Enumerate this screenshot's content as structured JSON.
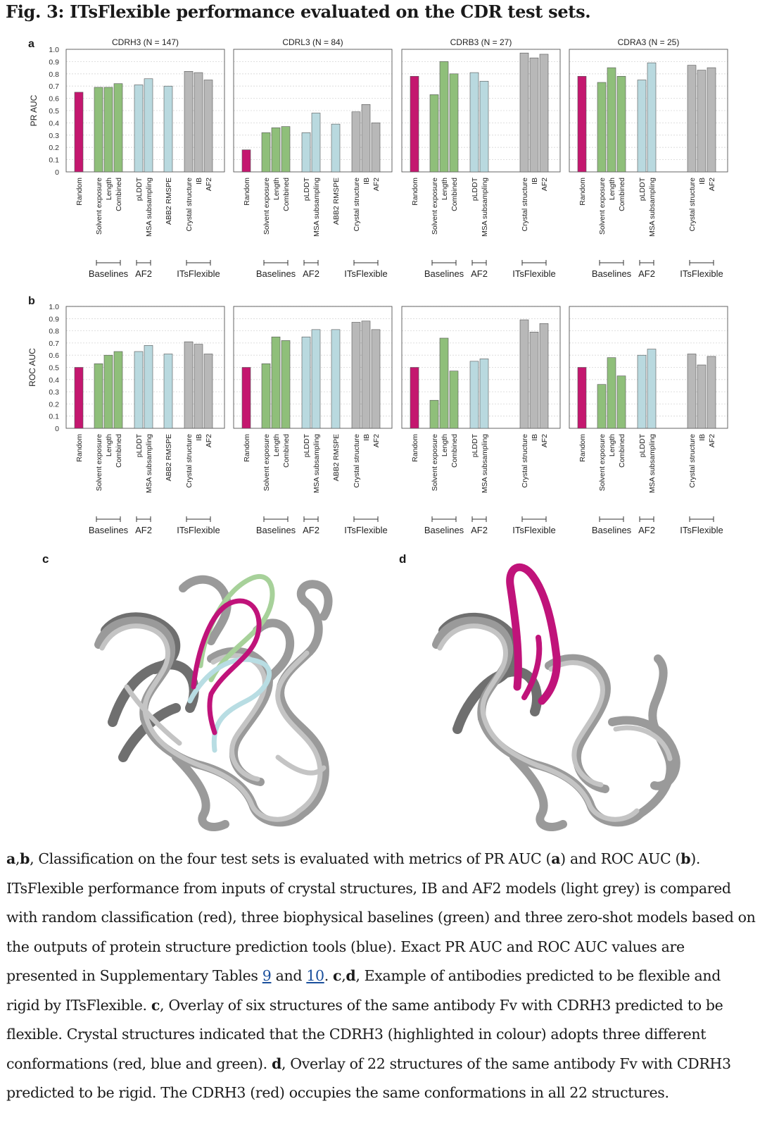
{
  "figure": {
    "title": "Fig. 3: ITsFlexible performance evaluated on the CDR test sets."
  },
  "panels": {
    "a": "a",
    "b": "b",
    "c": "c",
    "d": "d"
  },
  "chart_data": [
    {
      "type": "bar",
      "panel": "a",
      "ylabel": "PR AUC",
      "ylim": [
        0,
        1.0
      ],
      "yticks": [
        "0",
        "0.1",
        "0.2",
        "0.3",
        "0.4",
        "0.5",
        "0.6",
        "0.7",
        "0.8",
        "0.9",
        "1.0"
      ],
      "grid": "horizontal",
      "categories": [
        "Random",
        "Solvent exposure",
        "Length",
        "Combined",
        "pLDDT",
        "MSA subsampling",
        "ABB2 RMSPE",
        "Crystal structure",
        "IB",
        "AF2"
      ],
      "groups": [
        "Baselines",
        "AF2",
        "ITsFlexible"
      ],
      "subplots": [
        {
          "title": "CDRH3 (N = 147)",
          "values": [
            0.65,
            0.69,
            0.69,
            0.72,
            0.71,
            0.76,
            0.7,
            0.82,
            0.81,
            0.75
          ]
        },
        {
          "title": "CDRL3 (N = 84)",
          "values": [
            0.18,
            0.32,
            0.36,
            0.37,
            0.32,
            0.48,
            0.39,
            0.49,
            0.55,
            0.4
          ]
        },
        {
          "title": "CDRB3 (N = 27)",
          "values": [
            0.78,
            0.63,
            0.9,
            0.8,
            0.81,
            0.74,
            null,
            0.97,
            0.93,
            0.96
          ]
        },
        {
          "title": "CDRA3 (N = 25)",
          "values": [
            0.78,
            0.73,
            0.85,
            0.78,
            0.75,
            0.89,
            null,
            0.87,
            0.83,
            0.85
          ]
        }
      ]
    },
    {
      "type": "bar",
      "panel": "b",
      "ylabel": "ROC AUC",
      "ylim": [
        0,
        1.0
      ],
      "yticks": [
        "0",
        "0.1",
        "0.2",
        "0.3",
        "0.4",
        "0.5",
        "0.6",
        "0.7",
        "0.8",
        "0.9",
        "1.0"
      ],
      "grid": "horizontal",
      "categories": [
        "Random",
        "Solvent exposure",
        "Length",
        "Combined",
        "pLDDT",
        "MSA subsampling",
        "ABB2 RMSPE",
        "Crystal structure",
        "IB",
        "AF2"
      ],
      "groups": [
        "Baselines",
        "AF2",
        "ITsFlexible"
      ],
      "subplots": [
        {
          "title": "",
          "values": [
            0.5,
            0.53,
            0.6,
            0.63,
            0.63,
            0.68,
            0.61,
            0.71,
            0.69,
            0.61
          ]
        },
        {
          "title": "",
          "values": [
            0.5,
            0.53,
            0.75,
            0.72,
            0.75,
            0.81,
            0.81,
            0.87,
            0.88,
            0.81
          ]
        },
        {
          "title": "",
          "values": [
            0.5,
            0.23,
            0.74,
            0.47,
            0.55,
            0.57,
            null,
            0.89,
            0.79,
            0.86
          ]
        },
        {
          "title": "",
          "values": [
            0.5,
            0.36,
            0.58,
            0.43,
            0.6,
            0.65,
            null,
            0.61,
            0.52,
            0.59
          ]
        }
      ]
    }
  ],
  "colors": {
    "random": "#c4176f",
    "baselines": "#8fbf7a",
    "af2": "#b9d9df",
    "itsflexible": "#b8b8b8",
    "highlight_red": "#c0137a",
    "highlight_green": "#a7d19a",
    "highlight_blue": "#b8dde3",
    "link": "#1a4f9c"
  },
  "caption": {
    "p1_a": "a",
    "p1_comma": ",",
    "p1_b": "b",
    "p1_text1": ", Classification on the four test sets is evaluated with metrics of PR AUC (",
    "p1_a2": "a",
    "p1_text2": ") and ROC AUC (",
    "p1_b2": "b",
    "p1_text3": "). ITsFlexible performance from inputs of crystal structures, IB and AF2 models (light grey) is compared with random classification (red), three biophysical baselines (green) and three zero-shot models based on the outputs of protein structure prediction tools (blue). Exact PR AUC and ROC AUC values are presented in Supplementary Tables ",
    "link9": "9",
    "and": " and ",
    "link10": "10",
    "p1_end": ". ",
    "c": "c",
    "comma2": ",",
    "d": "d",
    "text_cd": ", Example of antibodies predicted to be flexible and rigid by ITsFlexible. ",
    "c2": "c",
    "text_c": ", Overlay of six structures of the same antibody Fv with CDRH3 predicted to be flexible. Crystal structures indicated that the CDRH3 (highlighted in colour) adopts three different conformations (red, blue and green). ",
    "d2": "d",
    "text_d": ", Overlay of 22 structures of the same antibody Fv with CDRH3 predicted to be rigid. The CDRH3 (red) occupies the same conformations in all 22 structures."
  }
}
